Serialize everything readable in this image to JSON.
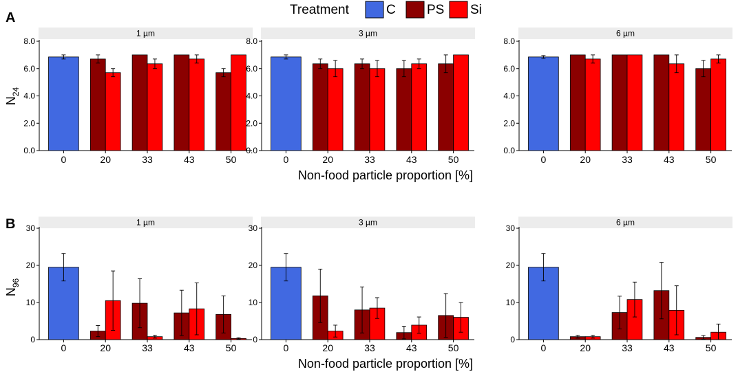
{
  "legend": {
    "title": "Treatment",
    "items": [
      {
        "label": "C",
        "color": "#4169E1"
      },
      {
        "label": "PS",
        "color": "#8B0000"
      },
      {
        "label": "Si",
        "color": "#FF0000"
      }
    ]
  },
  "chart_data": [
    {
      "panel": "A",
      "type": "bar",
      "ylabel": "N",
      "ylabel_sub": "24",
      "xlabel": "Non-food particle proportion [%]",
      "ylim": [
        0,
        8
      ],
      "yticks": [
        "0.0",
        "2.0",
        "4.0",
        "6.0",
        "8.0"
      ],
      "categories": [
        "0",
        "20",
        "33",
        "43",
        "50"
      ],
      "facets": [
        {
          "title": "1 µm",
          "control": {
            "value": 6.85,
            "err": 0.15
          },
          "PS": [
            {
              "value": 6.7,
              "err": 0.3
            },
            {
              "value": 7.0,
              "err": 0.0
            },
            {
              "value": 7.0,
              "err": 0.0
            },
            {
              "value": 5.7,
              "err": 0.3
            }
          ],
          "Si": [
            {
              "value": 5.7,
              "err": 0.3
            },
            {
              "value": 6.35,
              "err": 0.35
            },
            {
              "value": 6.7,
              "err": 0.3
            },
            {
              "value": 7.0,
              "err": 0.0
            }
          ]
        },
        {
          "title": "3 µm",
          "control": {
            "value": 6.85,
            "err": 0.15
          },
          "PS": [
            {
              "value": 6.35,
              "err": 0.35
            },
            {
              "value": 6.35,
              "err": 0.35
            },
            {
              "value": 6.0,
              "err": 0.6
            },
            {
              "value": 6.35,
              "err": 0.65
            }
          ],
          "Si": [
            {
              "value": 6.0,
              "err": 0.6
            },
            {
              "value": 6.0,
              "err": 0.6
            },
            {
              "value": 6.35,
              "err": 0.35
            },
            {
              "value": 7.0,
              "err": 0.0
            }
          ]
        },
        {
          "title": "6 µm",
          "control": {
            "value": 6.85,
            "err": 0.1
          },
          "PS": [
            {
              "value": 7.0,
              "err": 0.0
            },
            {
              "value": 7.0,
              "err": 0.0
            },
            {
              "value": 7.0,
              "err": 0.0
            },
            {
              "value": 6.0,
              "err": 0.6
            }
          ],
          "Si": [
            {
              "value": 6.7,
              "err": 0.3
            },
            {
              "value": 7.0,
              "err": 0.0
            },
            {
              "value": 6.35,
              "err": 0.65
            },
            {
              "value": 6.7,
              "err": 0.3
            }
          ]
        }
      ]
    },
    {
      "panel": "B",
      "type": "bar",
      "ylabel": "N",
      "ylabel_sub": "96",
      "xlabel": "Non-food particle proportion [%]",
      "ylim": [
        0,
        30
      ],
      "yticks": [
        "0",
        "10",
        "20",
        "30"
      ],
      "categories": [
        "0",
        "20",
        "33",
        "43",
        "50"
      ],
      "facets": [
        {
          "title": "1 µm",
          "control": {
            "value": 19.5,
            "err": 3.7
          },
          "PS": [
            {
              "value": 2.3,
              "err": 1.5
            },
            {
              "value": 9.8,
              "err": 6.6
            },
            {
              "value": 7.2,
              "err": 6.1
            },
            {
              "value": 6.8,
              "err": 5.0
            }
          ],
          "Si": [
            {
              "value": 10.5,
              "err": 8.0
            },
            {
              "value": 0.8,
              "err": 0.4
            },
            {
              "value": 8.3,
              "err": 7.0
            },
            {
              "value": 0.3,
              "err": 0.2
            }
          ]
        },
        {
          "title": "3 µm",
          "control": {
            "value": 19.5,
            "err": 3.7
          },
          "PS": [
            {
              "value": 11.8,
              "err": 7.2
            },
            {
              "value": 8.0,
              "err": 6.2
            },
            {
              "value": 1.9,
              "err": 1.7
            },
            {
              "value": 6.5,
              "err": 5.9
            }
          ],
          "Si": [
            {
              "value": 2.3,
              "err": 1.6
            },
            {
              "value": 8.5,
              "err": 2.8
            },
            {
              "value": 3.9,
              "err": 2.2
            },
            {
              "value": 6.0,
              "err": 4.0
            }
          ]
        },
        {
          "title": "6 µm",
          "control": {
            "value": 19.5,
            "err": 3.7
          },
          "PS": [
            {
              "value": 0.8,
              "err": 0.4
            },
            {
              "value": 7.3,
              "err": 4.4
            },
            {
              "value": 13.2,
              "err": 7.6
            },
            {
              "value": 0.6,
              "err": 0.5
            }
          ],
          "Si": [
            {
              "value": 0.8,
              "err": 0.4
            },
            {
              "value": 10.8,
              "err": 4.7
            },
            {
              "value": 7.9,
              "err": 6.6
            },
            {
              "value": 2.0,
              "err": 2.2
            }
          ]
        }
      ]
    }
  ]
}
